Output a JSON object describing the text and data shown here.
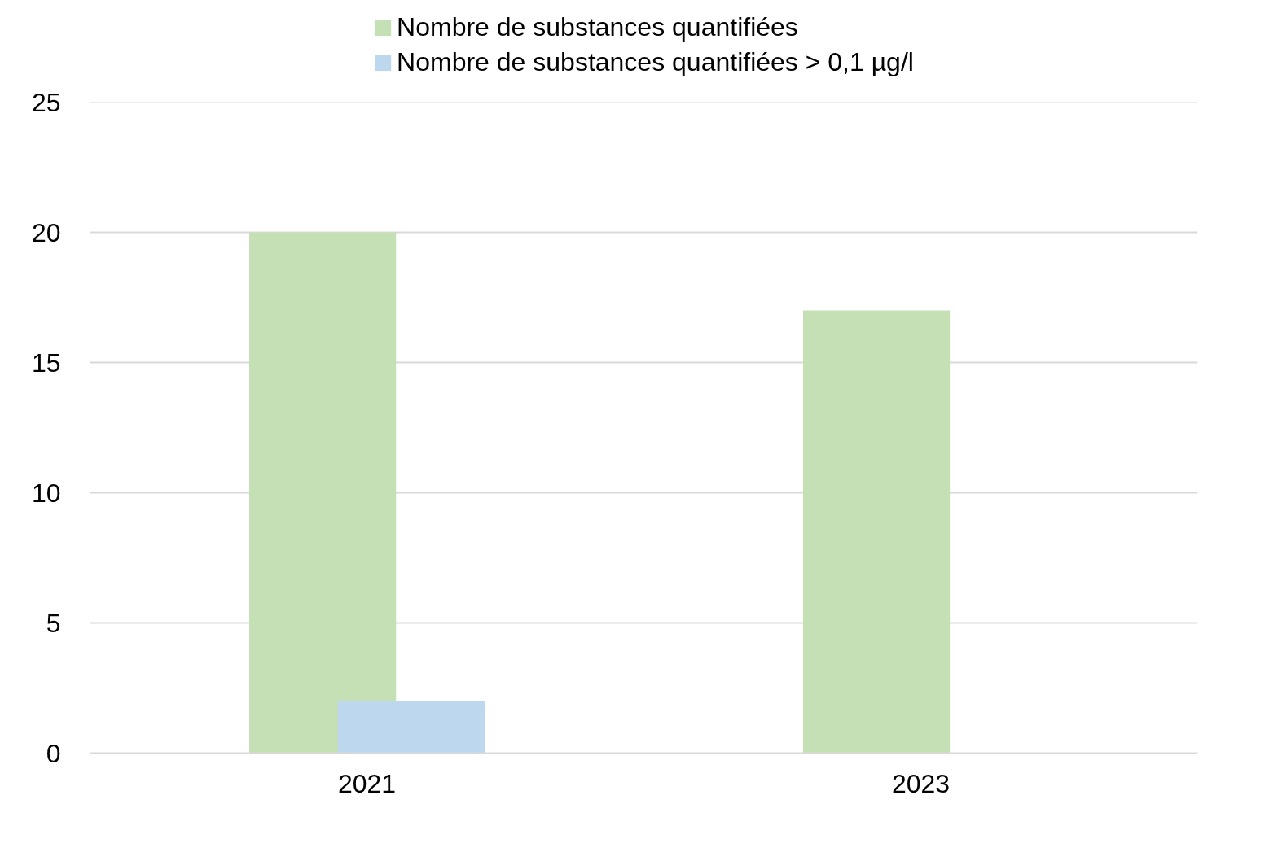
{
  "chart_data": {
    "type": "bar",
    "categories": [
      "2021",
      "2023"
    ],
    "series": [
      {
        "name": "Nombre de substances quantifiées",
        "color": "#c5e0b4",
        "values": [
          20,
          17
        ]
      },
      {
        "name": "Nombre de substances quantifiées > 0,1 µg/l",
        "color": "#bdd7ee",
        "values": [
          2,
          0
        ]
      }
    ],
    "ylim": [
      0,
      25
    ],
    "yticks": [
      0,
      5,
      10,
      15,
      20,
      25
    ],
    "grid": "y",
    "legend": "top"
  }
}
